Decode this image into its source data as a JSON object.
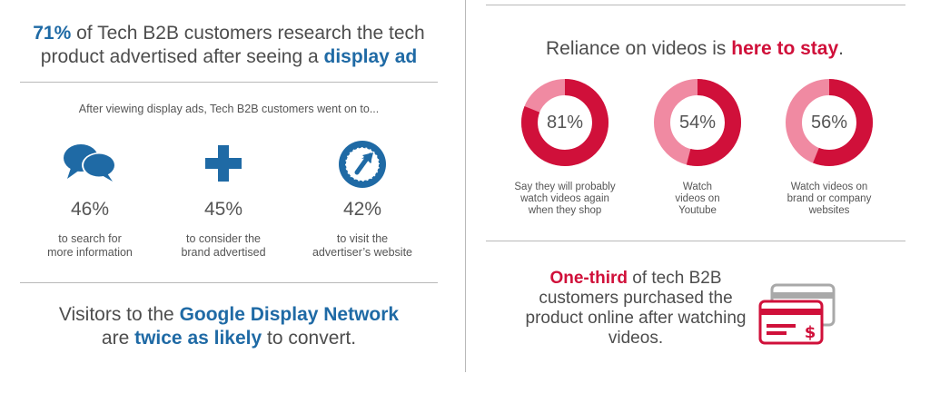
{
  "left": {
    "headline": {
      "pct": "71%",
      "text1": " of Tech B2B customers research the tech product advertised after seeing a ",
      "emphasis": "display ad"
    },
    "subhead": "After viewing display ads, Tech B2B customers went on to...",
    "stats": [
      {
        "icon": "chat-bubbles-icon",
        "pct": "46%",
        "line1": "to search for",
        "line2": "more information"
      },
      {
        "icon": "plus-icon",
        "pct": "45%",
        "line1": "to consider the",
        "line2": "brand advertised"
      },
      {
        "icon": "cursor-circle-icon",
        "pct": "42%",
        "line1": "to visit the",
        "line2": "advertiser’s website"
      }
    ],
    "bottom": {
      "text1": "Visitors to the ",
      "emphasis1": "Google Display Network",
      "text2": "are ",
      "emphasis2": "twice as likely",
      "text3": " to convert."
    }
  },
  "right": {
    "headline": {
      "text1": "Reliance on videos is ",
      "emphasis": "here to stay",
      "text2": "."
    },
    "donuts": [
      {
        "value": 81,
        "label": "81%",
        "lines": [
          "Say they will probably",
          "watch videos again",
          "when they shop"
        ]
      },
      {
        "value": 54,
        "label": "54%",
        "lines": [
          "Watch",
          "videos on",
          "Youtube"
        ]
      },
      {
        "value": 56,
        "label": "56%",
        "lines": [
          "Watch videos on",
          "brand or company",
          "websites"
        ]
      }
    ],
    "one_third": {
      "emphasis": "One-third",
      "text1": " of tech B2B customers purchased the product online after watching videos."
    },
    "card_icon": "credit-card-icon"
  },
  "colors": {
    "blue": "#1f6aa5",
    "red": "#d0103a",
    "light_red": "#f08aa2",
    "rule": "#b9b9b9"
  }
}
